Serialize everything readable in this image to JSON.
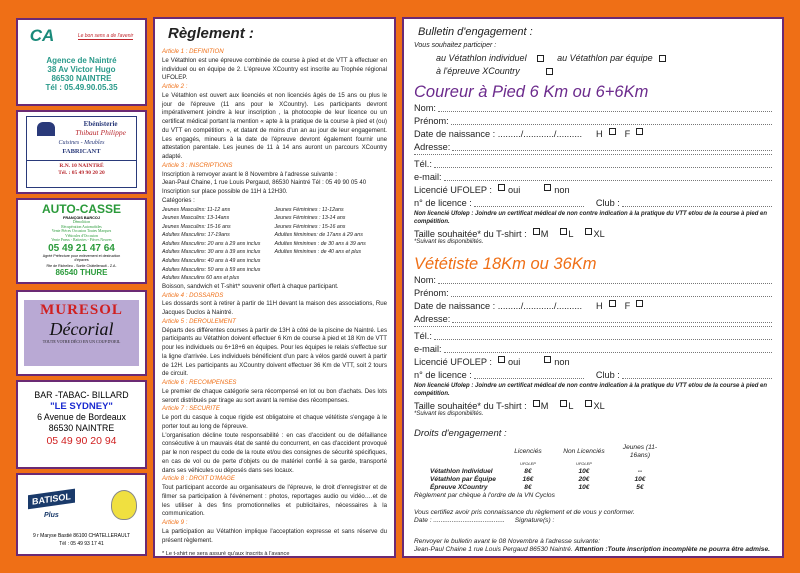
{
  "ads": {
    "credit_agricole": {
      "logo": "CA",
      "tagline": "Le bon sens a de l'avenir",
      "lines": [
        "Agence de Naintré",
        "38 Av Victor Hugo",
        "86530 NAINTRE",
        "Tél : 05.49.90.05.35"
      ],
      "color": "#2a9a8a"
    },
    "ebenisterie": {
      "title": "Ebénisterie",
      "name": "Thibaut Philippe",
      "sub": "Cuisines - Meubles",
      "role": "FABRICANT",
      "addr": "R.N. 10 NAINTRÉ",
      "tel": "Tél. : 05 49 90 20 20"
    },
    "autocasse": {
      "title": "AUTO-CASSE",
      "owner": "FRANÇOIS BARCOJ",
      "services": [
        "Démolition",
        "Récupération Automobiles",
        "Vente Pièces Occasion Toutes Marques",
        "Véhicules d'Occasion",
        "Vente Pneus - Batteries - Pièces Neuves"
      ],
      "phone": "05 49 21 47 64",
      "agree": "Agréé Préfecture pour enlèvement et destruction d'épaves",
      "route": "Rte de Richelieu - Sortie Châtellerault - Z.A.",
      "city": "86540 THURE"
    },
    "muresol": {
      "title": "MURESOL",
      "brand": "Décorial",
      "slogan": "TOUTE VOTRE DÉCO EN UN COUP D'OEIL"
    },
    "sydney": {
      "l1": "BAR -TABAC- BILLARD",
      "name": "\"LE SYDNEY\"",
      "addr": "6 Avenue de Bordeaux",
      "city": "86530 NAINTRE",
      "phone": "05 49 90 20 94"
    },
    "batisol": {
      "brand": "BATISOL",
      "plus": "Plus",
      "addr": "9 r Maryse Bastié 86100 CHATELLERAULT",
      "tel": "Tél : 05 49 93 17 41"
    }
  },
  "reglement": {
    "title": "Règlement :",
    "a1_t": "Article 1 : DEFINITION",
    "a1": "Le Vétathlon est une épreuve combinée de course à pied et de VTT à effectuer en individuel ou en équipe de 2. L'épreuve XCountry est inscrite au Trophée régional UFOLEP.",
    "a2_t": "Article 2 :",
    "a2": "Le Vétathlon est ouvert aux licenciés et non licenciés âgés de 15 ans ou plus le jour de l'épreuve (11 ans pour le XCountry). Les participants devront impérativement joindre à leur inscription , la photocopie de leur licence ou un certificat médical portant la mention « apte à la pratique de la course à pied et (ou) du VTT en compétition », et datant de moins d'un an au jour de leur engagement. Les engagés, mineurs à la date de l'épreuve devront également fournir une attestation parentale. Les jeunes de 11 à 14 ans auront un parcours XCountry adapté.",
    "a3_t": "Article 3 : INSCRIPTIONS",
    "a3": [
      "Inscription à renvoyer avant le 8 Novembre à l'adresse suivante :",
      "Jean-Paul Chaine, 1 rue Louis Pergaud, 86530 Naintré Tél : 05 49 90 05 40",
      "Inscription sur place possible de 11H à 12H30.",
      "Catégories :"
    ],
    "cats": [
      "Jeunes Masculins: 11-12 ans",
      "Jeunes Féminines : 11-12ans",
      "Jeunes Masculins: 13-14ans",
      "Jeunes Féminines : 13-14 ans",
      "Jeunes Masculins: 15-16 ans",
      "Jeunes Féminines : 15-16 ans",
      "Adultes Masculins: 17-19ans",
      "Adultes féminines: de 17ans à 29 ans",
      "Adultes Masculins: 20 ans à 29 ans inclus",
      "Adultes féminines : de 30 ans à 39 ans",
      "Adultes Masculins: 30 ans à 39 ans inclus",
      "Adultes féminines : de 40 ans et plus",
      "Adultes Masculins: 40 ans à 49 ans inclus",
      "",
      "Adultes Masculins: 50 ans à 59 ans inclus",
      "",
      "Adultes Masculins 60 ans et plus",
      ""
    ],
    "a3_end": "Boisson, sandwich et T-shirt* souvenir offert à chaque participant.",
    "a4_t": "Article 4 : DOSSARDS",
    "a4": "Les dossards sont à retirer à partir de 11H devant la maison des associations, Rue Jacques Duclos à Naintré.",
    "a5_t": "Article 5 : DEROULEMENT",
    "a5": "Départs des différentes courses à partir de 13H à côté de la piscine de Naintré. Les participants au Vétathlon doivent effectuer 6 Km de course à pied et 18 Km de VTT pour les individuels ou 6+18+6 en équipes. Pour les équipes le relais s'effectue sur la ligne d'arrivée. Les individuels bénéficient d'un parc à vélos gardé ouvert à partir de 12H. Les participants au XCountry doivent effectuer 36 Km de VTT, soit 2 tours de circuit.",
    "a6_t": "Article 6 : RECOMPENSES",
    "a6": "Le premier de chaque catégorie sera récompensé en lot ou bon d'achats. Des lots seront distribués par tirage au sort avant la remise des récompenses.",
    "a7_t": "Article 7 : SECURITE",
    "a7a": "Le port du casque à coque rigide est obligatoire et chaque vététiste s'engage à le porter tout au long de l'épreuve.",
    "a7b": "L'organisation décline toute responsabilité : en cas d'accident ou de défaillance consécutive à un mauvais état de santé du concurrent, en cas d'accident provoqué par le non respect du code de la route et/ou des consignes de sécurité spécifiques, en cas de vol ou de perte d'objets ou de matériel confié à sa garde, transporté dans ses véhicules ou déposés dans ses locaux.",
    "a8_t": "Article 8 : DROIT D'IMAGE",
    "a8": "Tout participant accorde au organisateurs de l'épreuve, le droit d'enregistrer et de filmer sa participation à l'événement : photos, reportages audio ou vidéo….et de les utiliser à des fins promotionnelles et publicitaires, nécessaires à la communication.",
    "a9_t": "Article 9 :",
    "a9": "La participation au Vétathlon implique l'acceptation expresse et sans réserve du présent règlement.",
    "footnote": "* Le t-shirt ne sera assuré qu'aux inscrits à l'avance"
  },
  "bulletin": {
    "title": "Bulletin d'engagement :",
    "intro": "Vous souhaitez participer :",
    "opt1": "au Vétathlon individuel",
    "opt2": "au Vétathlon par équipe",
    "opt3": "à l'épreuve XCountry",
    "sections": [
      {
        "title": "Coureur à Pied 6 Km ou 6+6Km",
        "color": "#6b2a8c"
      },
      {
        "title": "Vététiste  18Km ou 36Km",
        "color": "#ef6f16"
      }
    ],
    "f": {
      "nom": "Nom:",
      "prenom": "Prénom:",
      "date": "Date de naissance : ........./............/..........",
      "h": "H",
      "fem": "F",
      "adresse": "Adresse:",
      "tel": "Tél.:",
      "email": "e-mail:",
      "lic": "Licencié UFOLEP :",
      "oui": "oui",
      "non": "non",
      "numlic": "n° de licence :",
      "club": "Club :",
      "note": "Non licencié Ufolep : Joindre un certificat médical de non contre indication à la pratique du VTT et/ou de la course à pied en compétition.",
      "taille": "Taille souhaitée* du T-shirt :",
      "m": "M",
      "l": "L",
      "xl": "XL",
      "suivant": "*Suivant les disponibilités."
    },
    "fees": {
      "title": "Droits d'engagement :",
      "headers": [
        "",
        "Licenciés",
        "Non Licenciés",
        "Jeunes (11-16ans)"
      ],
      "sub": [
        "",
        "UFOLEP",
        "UFOLEP",
        ""
      ],
      "rows": [
        [
          "Vétathlon Individuel",
          "8€",
          "10€",
          "--"
        ],
        [
          "Vétathlon par Équipe",
          "16€",
          "20€",
          "10€"
        ],
        [
          "Épreuve XCountry",
          "8€",
          "10€",
          "5€"
        ]
      ],
      "payment": "Règlement par chèque à l'ordre de la VN Cyclos"
    },
    "certify": "Vous certifiez avoir pris connaissance du règlement et de vous y conformer.",
    "date": "Date : .......................................",
    "signature": "Signature(s) :",
    "return": "Renvoyer le bulletin avant le 08 Novembre à l'adresse suivante:",
    "address": "Jean-Paul Chaine 1 rue Louis Pergaud 86530 Naintré.",
    "attention": "Attention :Toute inscription incomplète ne pourra être admise."
  }
}
